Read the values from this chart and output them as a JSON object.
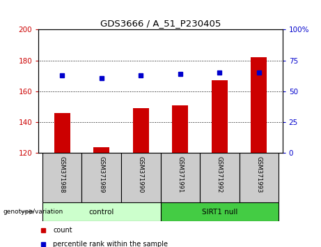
{
  "title": "GDS3666 / A_51_P230405",
  "samples": [
    "GSM371988",
    "GSM371989",
    "GSM371990",
    "GSM371991",
    "GSM371992",
    "GSM371993"
  ],
  "counts": [
    146,
    124,
    149,
    151,
    167,
    182
  ],
  "percentile_ranks": [
    63,
    61,
    63,
    64,
    65,
    65
  ],
  "ylim_left": [
    120,
    200
  ],
  "ylim_right": [
    0,
    100
  ],
  "yticks_left": [
    120,
    140,
    160,
    180,
    200
  ],
  "yticks_right": [
    0,
    25,
    50,
    75,
    100
  ],
  "ytick_right_labels": [
    "0",
    "25",
    "50",
    "75",
    "100%"
  ],
  "bar_color": "#cc0000",
  "dot_color": "#0000cc",
  "bar_bottom": 120,
  "groups": [
    {
      "label": "control",
      "indices": [
        0,
        1,
        2
      ],
      "color_light": "#ccffcc",
      "color_dark": "#88ee88"
    },
    {
      "label": "SIRT1 null",
      "indices": [
        3,
        4,
        5
      ],
      "color_light": "#66dd66",
      "color_dark": "#44cc44"
    }
  ],
  "label_cell_color": "#cccccc",
  "legend_count_color": "#cc0000",
  "legend_pct_color": "#0000cc",
  "ytick_left_color": "#cc0000",
  "ytick_right_color": "#0000cc",
  "bar_width": 0.4,
  "figsize": [
    4.61,
    3.54
  ],
  "dpi": 100
}
